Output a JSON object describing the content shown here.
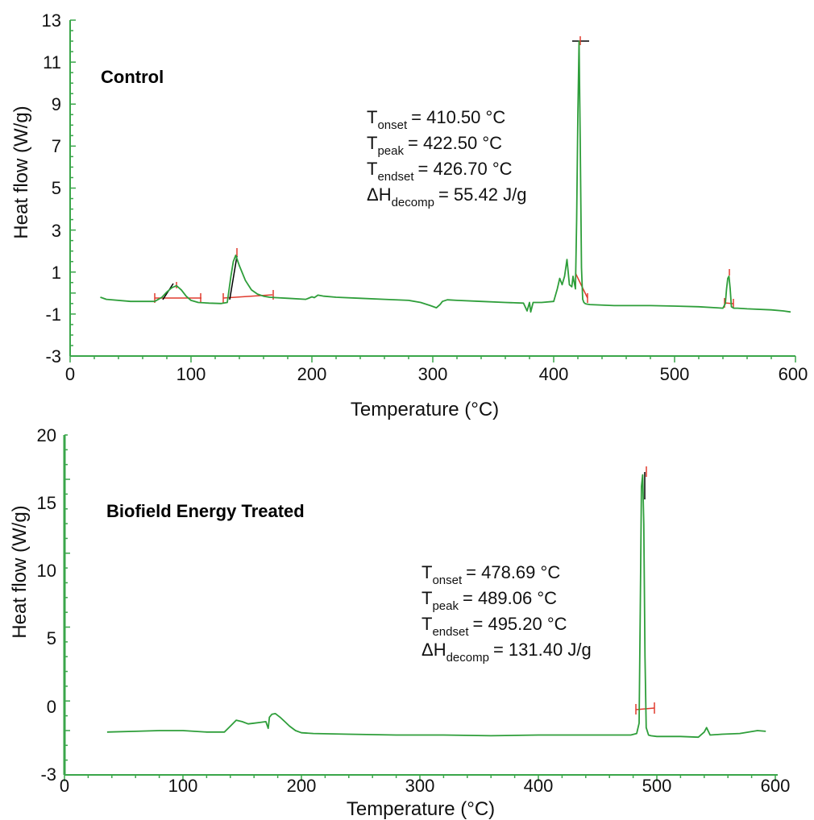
{
  "chart_data": [
    {
      "type": "line",
      "title": "Control",
      "xlabel": "Temperature (°C)",
      "ylabel": "Heat flow (W/g)",
      "xlim": [
        0,
        600
      ],
      "ylim": [
        -3,
        13
      ],
      "x_ticks": [
        "0",
        "100",
        "200",
        "300",
        "400",
        "500",
        "600"
      ],
      "y_ticks": [
        "-3",
        "-1",
        "1",
        "3",
        "5",
        "7",
        "9",
        "11",
        "13"
      ],
      "grid": false,
      "colors": {
        "curve": "#2e9e3a",
        "axis": "#3aa64a",
        "baseline": "#e03b2e",
        "tangent": "#000000"
      },
      "annotations": {
        "onset": {
          "symbol": "T",
          "sub": "onset",
          "value": "= 410.50 °C"
        },
        "peak": {
          "symbol": "T",
          "sub": "peak",
          "value": "= 422.50 °C"
        },
        "endset": {
          "symbol": "T",
          "sub": "endset",
          "value": "= 426.70 °C"
        },
        "enthalpy": {
          "symbol": "ΔH",
          "sub": "decomp",
          "value": "= 55.42 J/g"
        }
      },
      "series": [
        {
          "x": [
            25,
            30,
            50,
            70,
            76,
            80,
            84,
            88,
            92,
            96,
            100,
            106,
            115,
            125,
            130,
            133,
            135,
            137,
            140,
            145,
            150,
            155,
            160,
            165,
            170,
            180,
            195,
            200,
            202,
            205,
            210,
            220,
            240,
            260,
            280,
            290,
            298,
            303,
            306,
            308,
            312,
            320,
            340,
            360,
            375,
            378,
            380,
            381,
            383,
            390,
            400,
            403,
            405,
            407,
            409,
            411,
            413,
            415,
            416,
            417,
            418,
            419,
            420,
            421,
            422,
            423,
            424,
            425,
            426,
            427,
            430,
            450,
            480,
            500,
            520,
            535,
            540,
            542,
            543,
            544,
            545,
            546,
            547,
            549,
            552,
            560,
            580,
            590,
            596
          ],
          "y": [
            -0.2,
            -0.3,
            -0.4,
            -0.4,
            -0.2,
            0.05,
            0.25,
            0.35,
            0.15,
            -0.15,
            -0.35,
            -0.45,
            -0.48,
            -0.5,
            -0.45,
            0.8,
            1.5,
            1.8,
            1.3,
            0.6,
            0.15,
            -0.05,
            -0.15,
            -0.2,
            -0.22,
            -0.25,
            -0.3,
            -0.18,
            -0.22,
            -0.1,
            -0.15,
            -0.2,
            -0.25,
            -0.3,
            -0.35,
            -0.45,
            -0.6,
            -0.7,
            -0.55,
            -0.4,
            -0.32,
            -0.35,
            -0.4,
            -0.45,
            -0.48,
            -0.85,
            -0.45,
            -0.9,
            -0.45,
            -0.45,
            -0.4,
            0.2,
            0.7,
            0.4,
            0.8,
            1.6,
            0.4,
            0.3,
            0.8,
            0.5,
            0.2,
            3.5,
            8.5,
            12.0,
            7.0,
            1.2,
            -0.3,
            -0.45,
            -0.5,
            -0.52,
            -0.55,
            -0.6,
            -0.6,
            -0.62,
            -0.65,
            -0.7,
            -0.72,
            -0.5,
            0.2,
            0.7,
            0.8,
            0.2,
            -0.65,
            -0.72,
            -0.72,
            -0.75,
            -0.8,
            -0.85,
            -0.9
          ]
        }
      ]
    },
    {
      "type": "line",
      "title": "Biofield Energy Treated",
      "xlabel": "Temperature (°C)",
      "ylabel": "Heat flow (W/g)",
      "xlim": [
        0,
        600
      ],
      "ylim": [
        -3,
        20
      ],
      "x_ticks": [
        "0",
        "100",
        "200",
        "300",
        "400",
        "500",
        "600"
      ],
      "y_ticks": [
        "-3",
        "0",
        "5",
        "10",
        "15",
        "20"
      ],
      "grid": false,
      "colors": {
        "curve": "#2e9e3a",
        "axis": "#3aa64a",
        "baseline": "#e03b2e",
        "tangent": "#000000"
      },
      "annotations": {
        "onset": {
          "symbol": "T",
          "sub": "onset",
          "value": "= 478.69 °C"
        },
        "peak": {
          "symbol": "T",
          "sub": "peak",
          "value": "= 489.06 °C"
        },
        "endset": {
          "symbol": "T",
          "sub": "endset",
          "value": "= 495.20 °C"
        },
        "enthalpy": {
          "symbol": "ΔH",
          "sub": "decomp",
          "value": "= 131.40 J/g"
        }
      },
      "series": [
        {
          "x": [
            36,
            60,
            80,
            100,
            120,
            135,
            140,
            145,
            150,
            155,
            160,
            165,
            170,
            172,
            173,
            175,
            178,
            182,
            186,
            190,
            195,
            200,
            210,
            240,
            280,
            320,
            360,
            400,
            440,
            470,
            478,
            483,
            485,
            486,
            487,
            488,
            489,
            490,
            491,
            493,
            495,
            500,
            520,
            535,
            540,
            542,
            545,
            555,
            570,
            585,
            592
          ],
          "y": [
            -0.1,
            -0.05,
            0.0,
            0.0,
            -0.1,
            -0.1,
            0.3,
            0.7,
            0.6,
            0.45,
            0.5,
            0.55,
            0.6,
            0.15,
            0.9,
            1.1,
            1.15,
            0.9,
            0.6,
            0.3,
            0.0,
            -0.15,
            -0.2,
            -0.25,
            -0.3,
            -0.3,
            -0.35,
            -0.3,
            -0.3,
            -0.3,
            -0.3,
            -0.2,
            0.5,
            8.0,
            16.5,
            17.3,
            14.0,
            5.0,
            0.2,
            -0.3,
            -0.35,
            -0.4,
            -0.4,
            -0.45,
            -0.1,
            0.2,
            -0.3,
            -0.25,
            -0.2,
            0.0,
            -0.05
          ]
        }
      ]
    }
  ]
}
